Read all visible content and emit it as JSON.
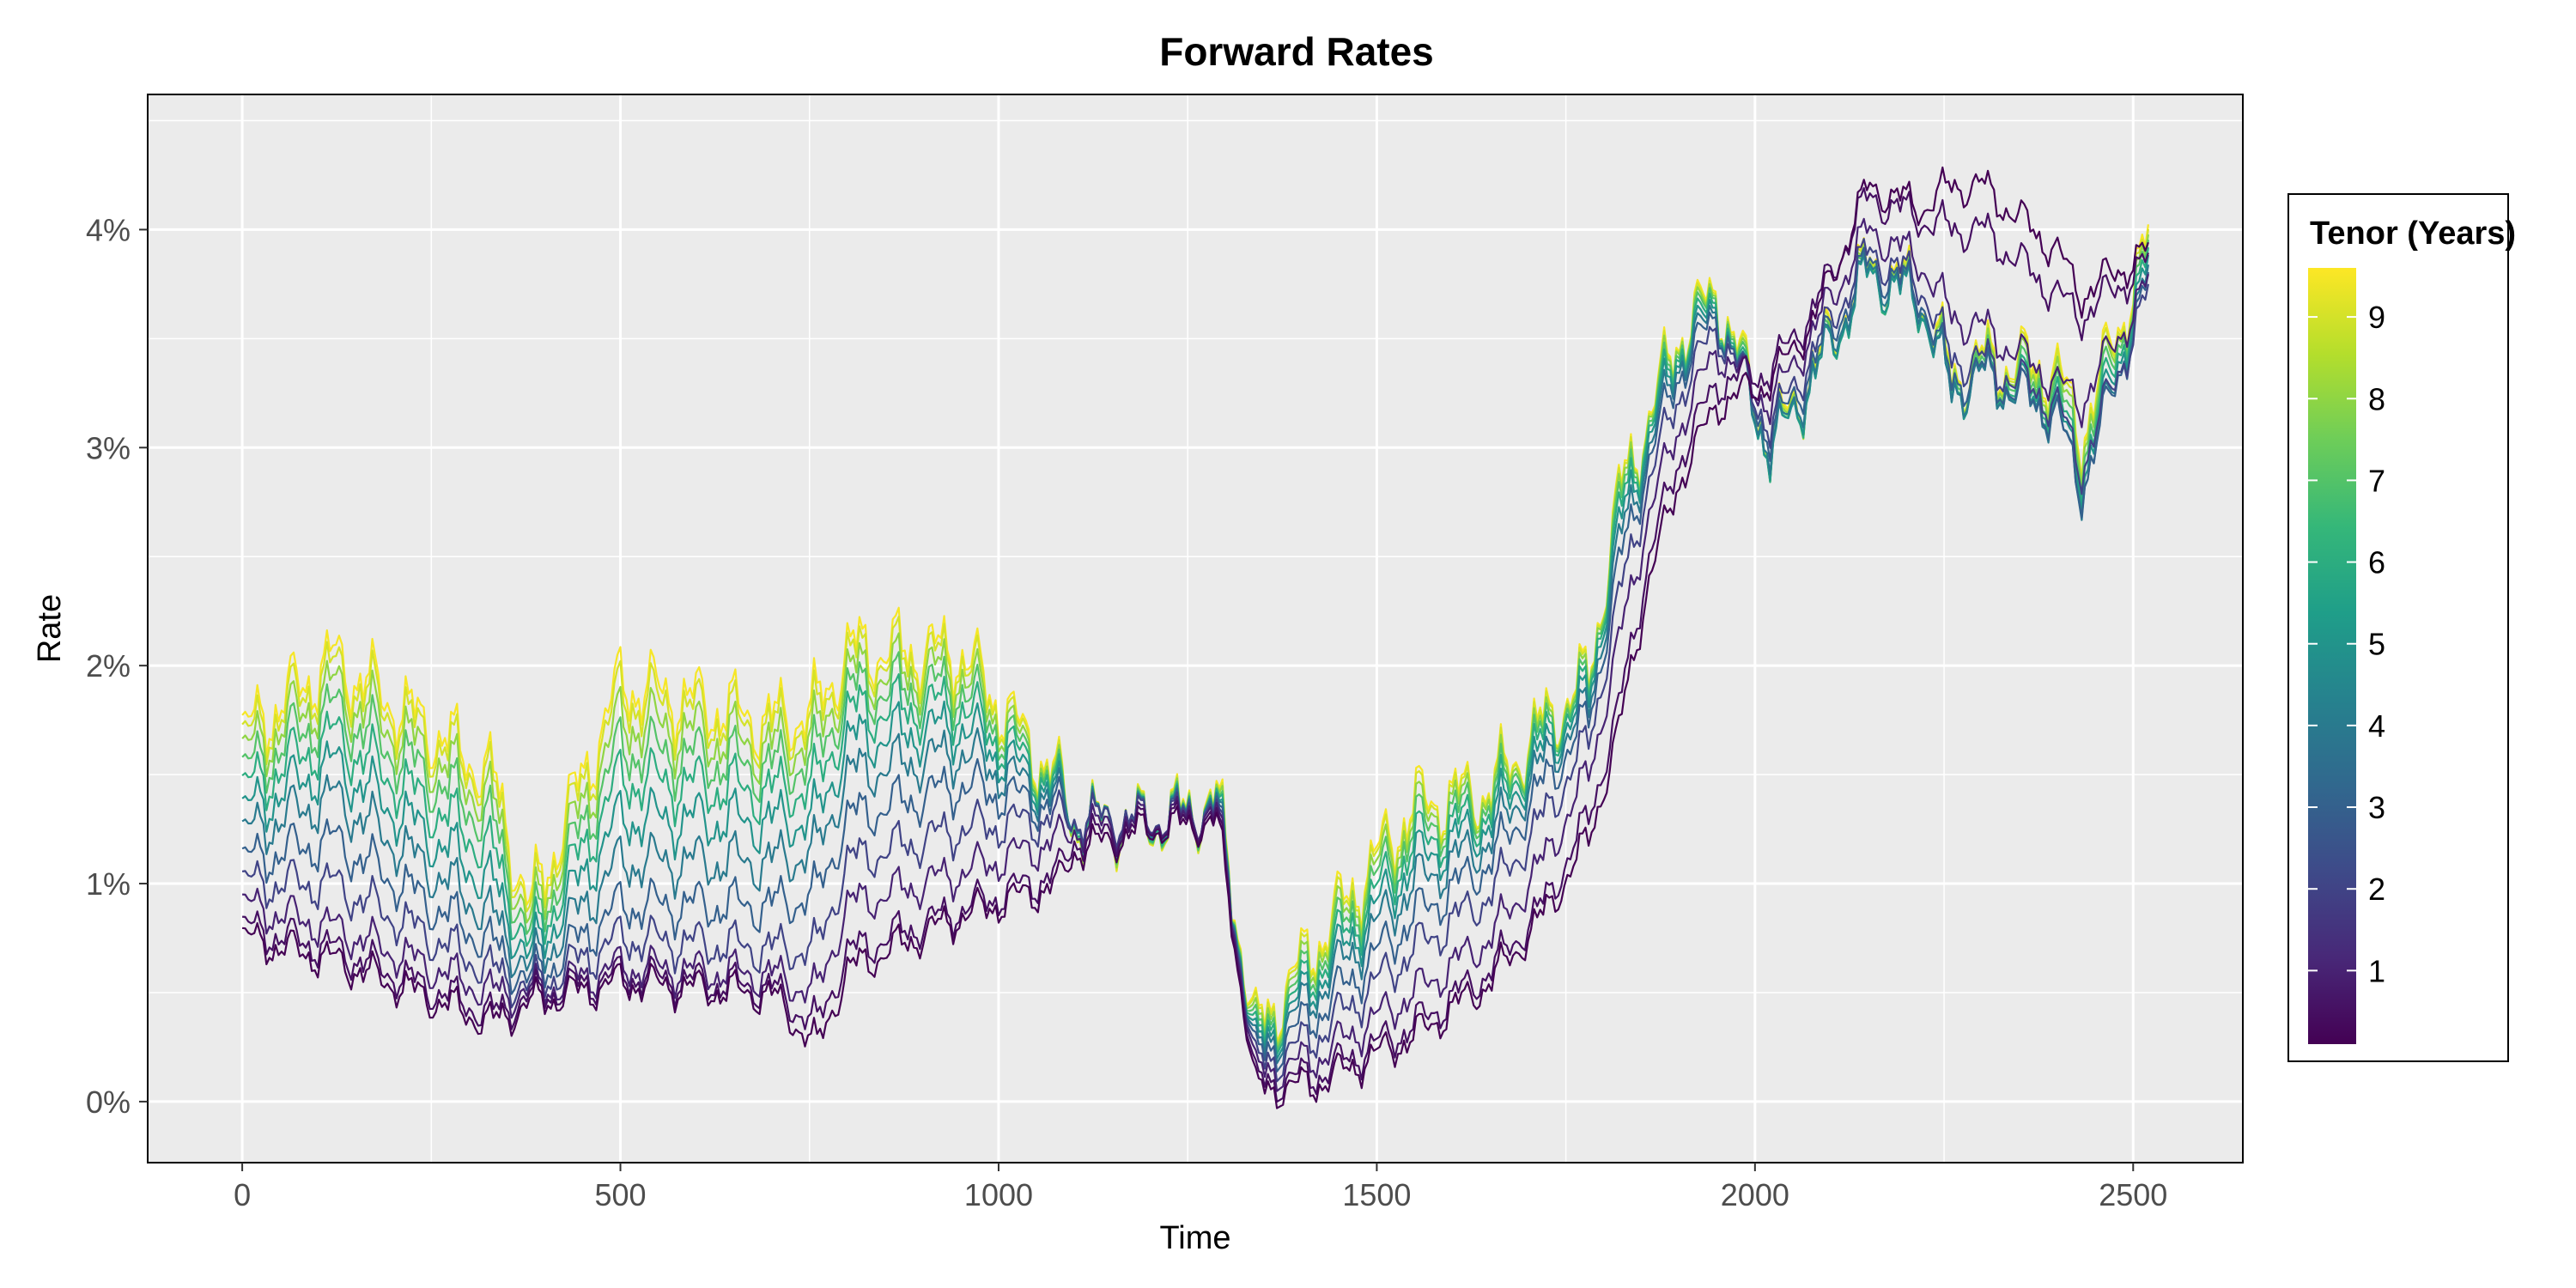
{
  "chart_data": {
    "type": "line",
    "title": "Forward Rates",
    "xlabel": "Time",
    "ylabel": "Rate",
    "xlim": [
      -125,
      2645
    ],
    "ylim": [
      -0.0028,
      0.0462
    ],
    "x_ticks": [
      0,
      500,
      1000,
      1500,
      2000,
      2500
    ],
    "x_tick_labels": [
      "0",
      "500",
      "1000",
      "1500",
      "2000",
      "2500"
    ],
    "y_ticks": [
      0,
      0.01,
      0.02,
      0.03,
      0.04
    ],
    "y_tick_labels": [
      "0%",
      "1%",
      "2%",
      "3%",
      "4%"
    ],
    "grid": true,
    "panel_background": "#EBEBEB",
    "gridline_color": "#FFFFFF",
    "color_scale": "viridis",
    "colorbar": {
      "title": "Tenor (Years)",
      "position": "right",
      "min": 0.1,
      "max": 9.6,
      "ticks": [
        1,
        2,
        3,
        4,
        5,
        6,
        7,
        8,
        9
      ],
      "tick_labels": [
        "1",
        "2",
        "3",
        "4",
        "5",
        "6",
        "7",
        "8",
        "9"
      ],
      "colors": [
        "#440154",
        "#482878",
        "#3E4A89",
        "#31688E",
        "#26828E",
        "#1F9E89",
        "#35B779",
        "#6DCD59",
        "#B4DE2C",
        "#FDE725"
      ]
    },
    "series_time": [
      0,
      120,
      330,
      380,
      500,
      700,
      760,
      800,
      950,
      1080,
      1100,
      1200,
      1290,
      1340,
      1420,
      1550,
      1650,
      1720,
      1780,
      1820,
      1860,
      1900,
      1950,
      2020,
      2080,
      2150,
      2220,
      2260,
      2300,
      2400,
      2430,
      2520
    ],
    "series": [
      {
        "tenor": 0.1,
        "values": [
          0.0075,
          0.0065,
          0.0036,
          0.0045,
          0.0055,
          0.0049,
          0.0025,
          0.006,
          0.0085,
          0.01,
          0.0115,
          0.0125,
          0.0128,
          0.0005,
          0.0008,
          0.003,
          0.0055,
          0.0085,
          0.012,
          0.017,
          0.024,
          0.0285,
          0.032,
          0.033,
          0.036,
          0.042,
          0.041,
          0.042,
          0.042,
          0.039,
          0.037,
          0.039
        ]
      },
      {
        "tenor": 0.5,
        "values": [
          0.008,
          0.007,
          0.004,
          0.0048,
          0.0058,
          0.0052,
          0.0035,
          0.0068,
          0.0088,
          0.0105,
          0.012,
          0.0127,
          0.013,
          0.0008,
          0.0012,
          0.0035,
          0.006,
          0.009,
          0.013,
          0.018,
          0.025,
          0.0295,
          0.033,
          0.0335,
          0.0365,
          0.0415,
          0.0405,
          0.04,
          0.04,
          0.037,
          0.036,
          0.0385
        ]
      },
      {
        "tenor": 1,
        "values": [
          0.009,
          0.008,
          0.005,
          0.005,
          0.0062,
          0.0058,
          0.005,
          0.009,
          0.0105,
          0.012,
          0.0125,
          0.0128,
          0.0132,
          0.0012,
          0.002,
          0.005,
          0.0075,
          0.011,
          0.015,
          0.021,
          0.027,
          0.031,
          0.0345,
          0.032,
          0.0355,
          0.04,
          0.0385,
          0.036,
          0.0355,
          0.033,
          0.032,
          0.0375
        ]
      },
      {
        "tenor": 2,
        "values": [
          0.01,
          0.01,
          0.006,
          0.0052,
          0.0075,
          0.007,
          0.007,
          0.011,
          0.0125,
          0.013,
          0.013,
          0.0129,
          0.0133,
          0.0015,
          0.003,
          0.007,
          0.0095,
          0.013,
          0.0165,
          0.023,
          0.0285,
          0.0325,
          0.0355,
          0.031,
          0.0345,
          0.039,
          0.0375,
          0.034,
          0.034,
          0.032,
          0.029,
          0.037
        ]
      },
      {
        "tenor": 3,
        "values": [
          0.011,
          0.012,
          0.0072,
          0.0055,
          0.009,
          0.009,
          0.0095,
          0.013,
          0.0145,
          0.0135,
          0.013,
          0.0129,
          0.0134,
          0.0018,
          0.004,
          0.0085,
          0.011,
          0.0145,
          0.0175,
          0.0245,
          0.0295,
          0.0335,
          0.036,
          0.0305,
          0.034,
          0.0385,
          0.037,
          0.033,
          0.0335,
          0.0315,
          0.028,
          0.0375
        ]
      },
      {
        "tenor": 4,
        "values": [
          0.0122,
          0.014,
          0.0085,
          0.006,
          0.011,
          0.011,
          0.0115,
          0.015,
          0.016,
          0.0138,
          0.013,
          0.0128,
          0.0135,
          0.002,
          0.005,
          0.01,
          0.012,
          0.0155,
          0.018,
          0.0255,
          0.03,
          0.034,
          0.0362,
          0.03,
          0.0335,
          0.0382,
          0.0368,
          0.0325,
          0.0333,
          0.0315,
          0.028,
          0.0378
        ]
      },
      {
        "tenor": 5,
        "values": [
          0.0132,
          0.0155,
          0.01,
          0.0065,
          0.013,
          0.0128,
          0.013,
          0.0165,
          0.0172,
          0.014,
          0.013,
          0.0128,
          0.0135,
          0.0022,
          0.0055,
          0.011,
          0.0128,
          0.016,
          0.0185,
          0.0262,
          0.0305,
          0.0343,
          0.0364,
          0.0298,
          0.0333,
          0.038,
          0.0366,
          0.0325,
          0.0333,
          0.0318,
          0.0285,
          0.0382
        ]
      },
      {
        "tenor": 6,
        "values": [
          0.0142,
          0.0168,
          0.0115,
          0.007,
          0.0148,
          0.0142,
          0.0145,
          0.0178,
          0.0182,
          0.0142,
          0.0129,
          0.0127,
          0.0136,
          0.0024,
          0.006,
          0.0118,
          0.0133,
          0.0165,
          0.0188,
          0.0268,
          0.0308,
          0.0346,
          0.0366,
          0.0298,
          0.0333,
          0.038,
          0.0366,
          0.0326,
          0.0334,
          0.0322,
          0.029,
          0.0385
        ]
      },
      {
        "tenor": 7,
        "values": [
          0.015,
          0.018,
          0.0128,
          0.0075,
          0.0162,
          0.0153,
          0.0157,
          0.0188,
          0.019,
          0.0143,
          0.0129,
          0.0127,
          0.0136,
          0.0026,
          0.0064,
          0.0125,
          0.0137,
          0.0168,
          0.019,
          0.0272,
          0.031,
          0.0348,
          0.0368,
          0.0299,
          0.0334,
          0.0381,
          0.0367,
          0.0328,
          0.0336,
          0.0326,
          0.0295,
          0.0388
        ]
      },
      {
        "tenor": 8,
        "values": [
          0.0158,
          0.019,
          0.0138,
          0.008,
          0.0175,
          0.0162,
          0.0167,
          0.0196,
          0.0197,
          0.0144,
          0.0128,
          0.0127,
          0.0137,
          0.0028,
          0.0068,
          0.013,
          0.014,
          0.017,
          0.0192,
          0.0275,
          0.0312,
          0.035,
          0.0369,
          0.03,
          0.0335,
          0.0382,
          0.0368,
          0.033,
          0.0338,
          0.033,
          0.03,
          0.039
        ]
      },
      {
        "tenor": 9,
        "values": [
          0.0164,
          0.0198,
          0.0146,
          0.0085,
          0.0186,
          0.017,
          0.0175,
          0.0203,
          0.0203,
          0.0145,
          0.0128,
          0.0127,
          0.0137,
          0.003,
          0.0071,
          0.0134,
          0.0142,
          0.0172,
          0.0193,
          0.0277,
          0.0313,
          0.0351,
          0.037,
          0.0301,
          0.0336,
          0.0383,
          0.0369,
          0.0331,
          0.0339,
          0.0333,
          0.0303,
          0.0392
        ]
      },
      {
        "tenor": 9.5,
        "values": [
          0.0168,
          0.0203,
          0.015,
          0.0088,
          0.0192,
          0.0174,
          0.018,
          0.0207,
          0.0206,
          0.0146,
          0.0128,
          0.0127,
          0.0138,
          0.0031,
          0.0073,
          0.0136,
          0.0143,
          0.0173,
          0.0194,
          0.0278,
          0.0314,
          0.0352,
          0.0371,
          0.0302,
          0.0337,
          0.0384,
          0.037,
          0.0332,
          0.034,
          0.0335,
          0.0305,
          0.0394
        ]
      }
    ]
  }
}
